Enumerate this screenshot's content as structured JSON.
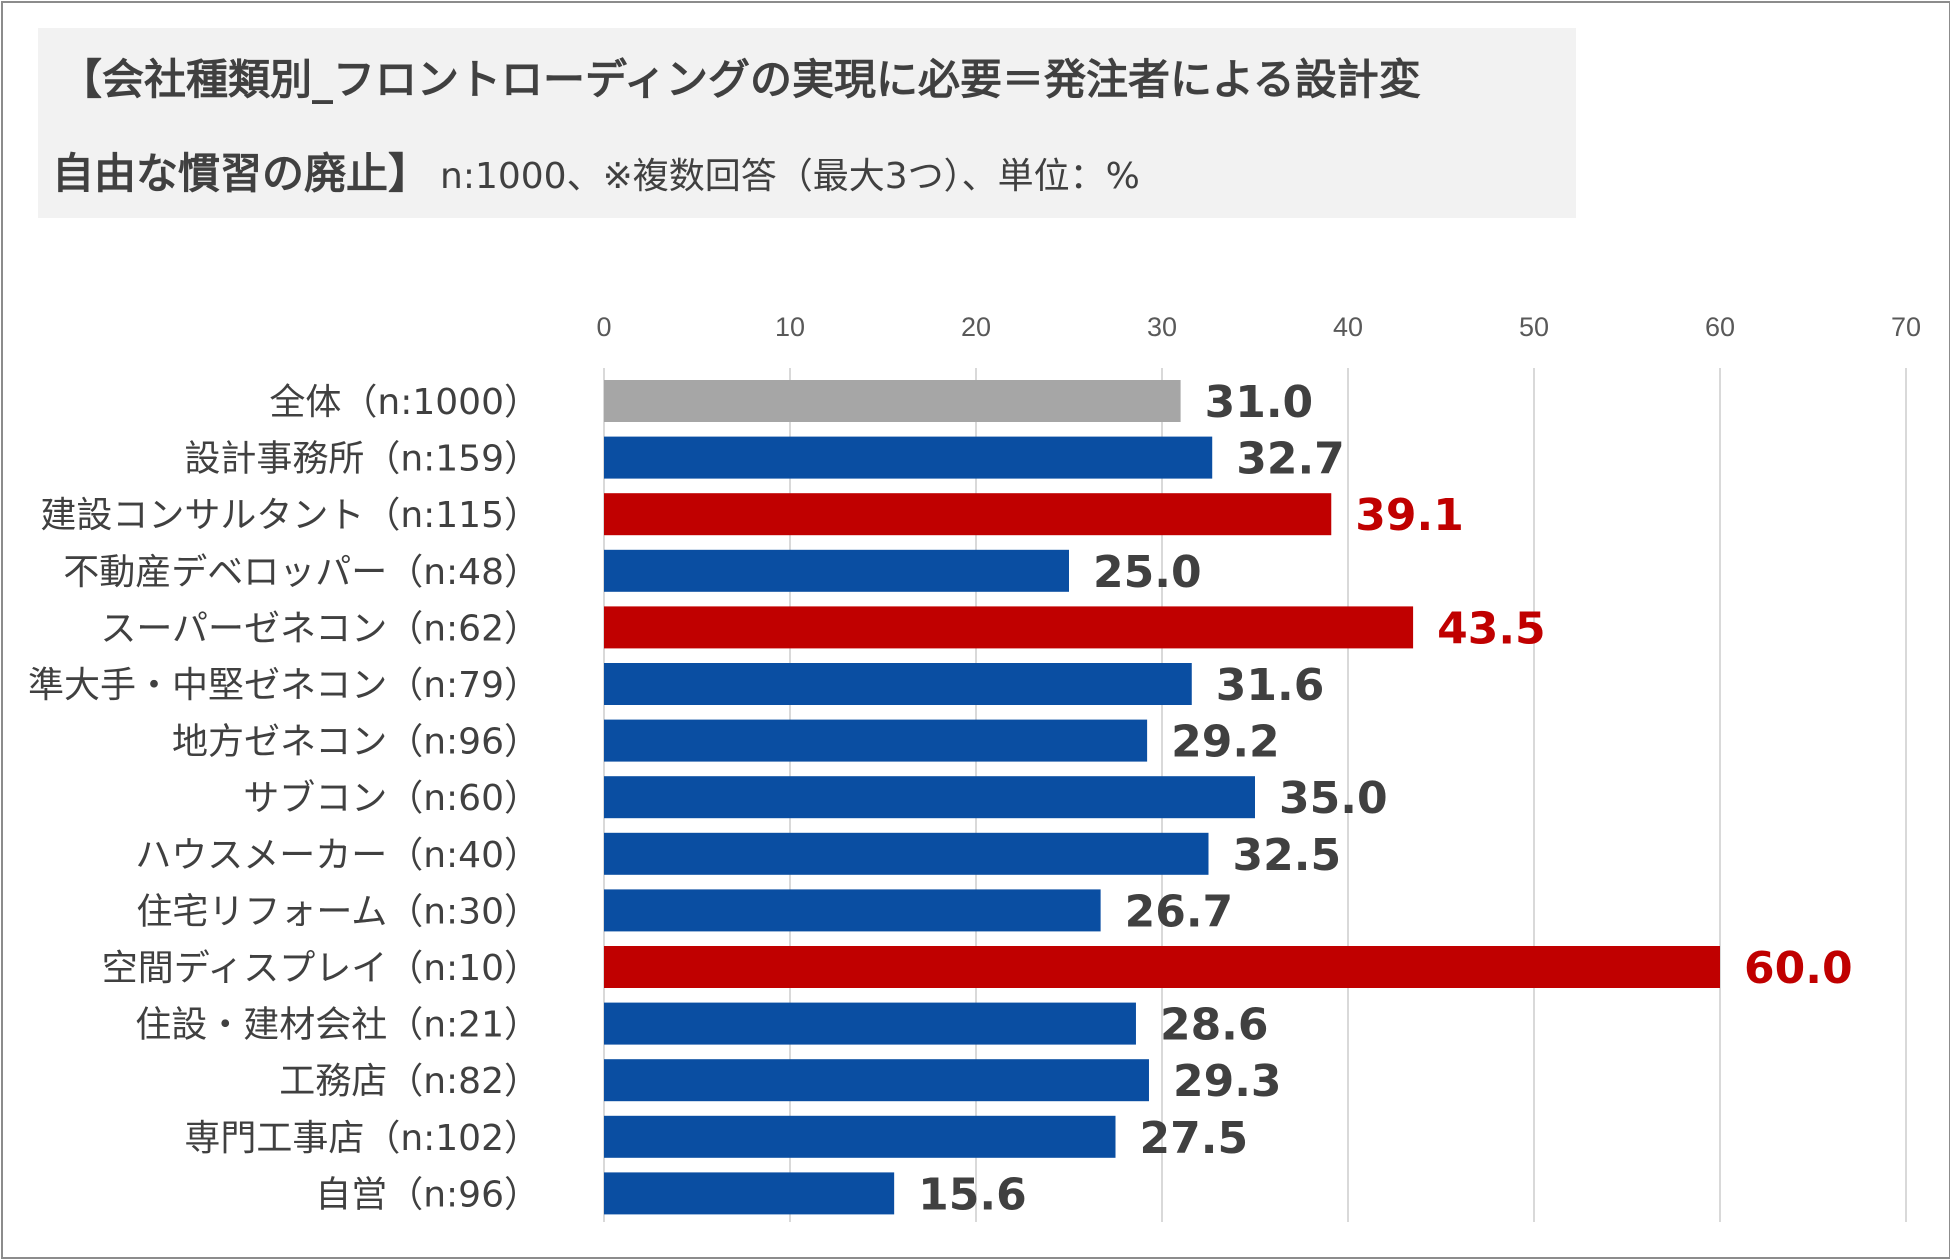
{
  "title": {
    "line1": "【会社種類別_フロントローディングの実現に必要＝発注者による設計変",
    "line2": "自由な慣習の廃止】",
    "subtitle": "n:1000、※複数回答（最大3つ）、単位：%"
  },
  "colors": {
    "overall": "#a6a6a6",
    "normal": "#0a4ea2",
    "highlight": "#c00000",
    "label_normal": "#404040",
    "label_highlight": "#c00000",
    "grid": "#d9d9d9"
  },
  "chart_data": {
    "type": "bar",
    "orientation": "horizontal",
    "title": "【会社種類別_フロントローディングの実現に必要＝発注者による設計変自由な慣習の廃止】",
    "xlabel": "",
    "ylabel": "",
    "xlim": [
      0,
      70
    ],
    "ticks": [
      0,
      10,
      20,
      30,
      40,
      50,
      60,
      70
    ],
    "grid": true,
    "categories": [
      "全体（n:1000）",
      "設計事務所（n:159）",
      "建設コンサルタント（n:115）",
      "不動産デベロッパー（n:48）",
      "スーパーゼネコン（n:62）",
      "準大手・中堅ゼネコン（n:79）",
      "地方ゼネコン（n:96）",
      "サブコン（n:60）",
      "ハウスメーカー（n:40）",
      "住宅リフォーム（n:30）",
      "空間ディスプレイ（n:10）",
      "住設・建材会社（n:21）",
      "工務店（n:82）",
      "専門工事店（n:102）",
      "自営（n:96）"
    ],
    "values": [
      31.0,
      32.7,
      39.1,
      25.0,
      43.5,
      31.6,
      29.2,
      35.0,
      32.5,
      26.7,
      60.0,
      28.6,
      29.3,
      27.5,
      15.6
    ],
    "value_labels": [
      "31.0",
      "32.7",
      "39.1",
      "25.0",
      "43.5",
      "31.6",
      "29.2",
      "35.0",
      "32.5",
      "26.7",
      "60.0",
      "28.6",
      "29.3",
      "27.5",
      "15.6"
    ],
    "bar_style": [
      "overall",
      "normal",
      "highlight",
      "normal",
      "highlight",
      "normal",
      "normal",
      "normal",
      "normal",
      "normal",
      "highlight",
      "normal",
      "normal",
      "normal",
      "normal"
    ]
  }
}
